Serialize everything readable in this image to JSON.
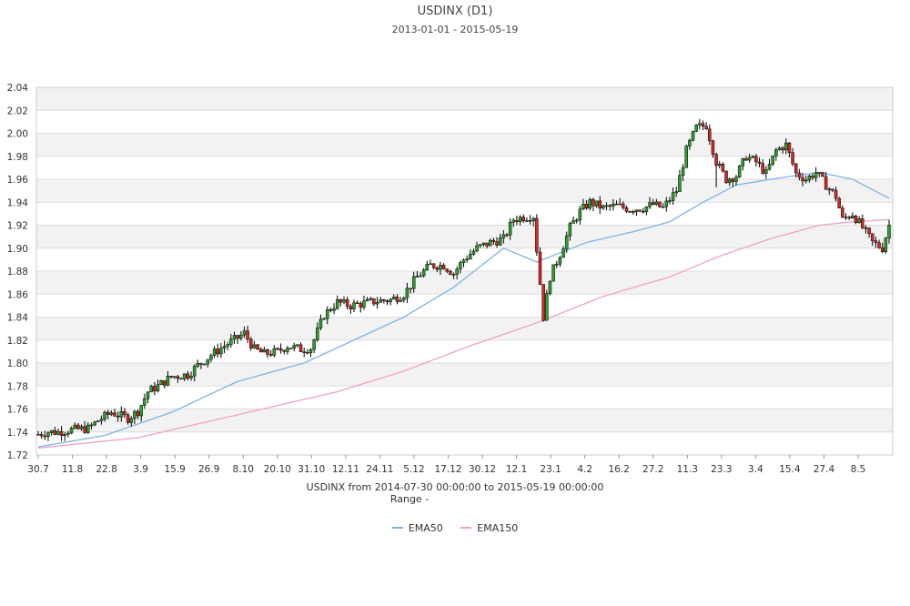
{
  "chart_data": {
    "type": "candlestick",
    "title": "USDINX (D1)",
    "subtitle": "2013-01-01 - 2015-05-19",
    "xlabel": "USDINX from 2014-07-30 00:00:00 to 2015-05-19 00:00:00",
    "range_label": "Range  -",
    "ylim": [
      1.72,
      2.04
    ],
    "yticks": [
      "1.72",
      "1.74",
      "1.76",
      "1.78",
      "1.80",
      "1.82",
      "1.84",
      "1.86",
      "1.88",
      "1.90",
      "1.92",
      "1.94",
      "1.96",
      "1.98",
      "2.00",
      "2.02",
      "2.04"
    ],
    "xticks": [
      "30.7",
      "11.8",
      "22.8",
      "3.9",
      "15.9",
      "26.9",
      "8.10",
      "20.10",
      "31.10",
      "12.11",
      "24.11",
      "5.12",
      "17.12",
      "30.12",
      "12.1",
      "23.1",
      "4.2",
      "16.2",
      "27.2",
      "11.3",
      "23.3",
      "3.4",
      "15.4",
      "27.4",
      "8.5"
    ],
    "grid": "horizontal bands",
    "legend_position": "bottom-center",
    "price_path": [
      [
        0,
        1.738
      ],
      [
        3,
        1.74
      ],
      [
        6,
        1.74
      ],
      [
        10,
        1.742
      ],
      [
        15,
        1.743
      ],
      [
        18,
        1.75
      ],
      [
        22,
        1.757
      ],
      [
        27,
        1.752
      ],
      [
        30,
        1.758
      ],
      [
        33,
        1.775
      ],
      [
        36,
        1.78
      ],
      [
        40,
        1.788
      ],
      [
        45,
        1.79
      ],
      [
        48,
        1.798
      ],
      [
        52,
        1.807
      ],
      [
        56,
        1.815
      ],
      [
        60,
        1.822
      ],
      [
        62,
        1.826
      ],
      [
        65,
        1.812
      ],
      [
        68,
        1.808
      ],
      [
        72,
        1.81
      ],
      [
        75,
        1.815
      ],
      [
        79,
        1.812
      ],
      [
        82,
        1.813
      ],
      [
        86,
        1.842
      ],
      [
        90,
        1.853
      ],
      [
        94,
        1.85
      ],
      [
        98,
        1.852
      ],
      [
        102,
        1.854
      ],
      [
        106,
        1.855
      ],
      [
        110,
        1.86
      ],
      [
        114,
        1.875
      ],
      [
        118,
        1.885
      ],
      [
        122,
        1.885
      ],
      [
        125,
        1.878
      ],
      [
        128,
        1.89
      ],
      [
        132,
        1.9
      ],
      [
        136,
        1.905
      ],
      [
        140,
        1.908
      ],
      [
        143,
        1.925
      ],
      [
        146,
        1.927
      ],
      [
        149,
        1.928
      ],
      [
        152,
        1.84
      ],
      [
        154,
        1.875
      ],
      [
        157,
        1.895
      ],
      [
        160,
        1.918
      ],
      [
        163,
        1.932
      ],
      [
        166,
        1.94
      ],
      [
        170,
        1.935
      ],
      [
        174,
        1.937
      ],
      [
        178,
        1.934
      ],
      [
        182,
        1.935
      ],
      [
        185,
        1.938
      ],
      [
        188,
        1.935
      ],
      [
        192,
        1.95
      ],
      [
        195,
        1.985
      ],
      [
        198,
        2.005
      ],
      [
        201,
        2.007
      ],
      [
        204,
        1.975
      ],
      [
        207,
        1.96
      ],
      [
        210,
        1.963
      ],
      [
        213,
        1.98
      ],
      [
        216,
        1.975
      ],
      [
        219,
        1.965
      ],
      [
        222,
        1.985
      ],
      [
        225,
        1.99
      ],
      [
        228,
        1.965
      ],
      [
        231,
        1.96
      ],
      [
        234,
        1.966
      ],
      [
        237,
        1.955
      ],
      [
        240,
        1.945
      ],
      [
        242,
        1.925
      ],
      [
        245,
        1.93
      ],
      [
        248,
        1.918
      ],
      [
        251,
        1.905
      ],
      [
        254,
        1.9
      ],
      [
        256,
        1.92
      ]
    ],
    "series": [
      {
        "name": "EMA50",
        "color": "#7fb2e5",
        "values": [
          [
            0,
            1.727
          ],
          [
            20,
            1.737
          ],
          [
            40,
            1.757
          ],
          [
            60,
            1.784
          ],
          [
            70,
            1.792
          ],
          [
            80,
            1.8
          ],
          [
            95,
            1.82
          ],
          [
            110,
            1.84
          ],
          [
            125,
            1.866
          ],
          [
            140,
            1.9
          ],
          [
            150,
            1.888
          ],
          [
            165,
            1.905
          ],
          [
            180,
            1.915
          ],
          [
            190,
            1.923
          ],
          [
            200,
            1.94
          ],
          [
            210,
            1.955
          ],
          [
            225,
            1.962
          ],
          [
            235,
            1.966
          ],
          [
            245,
            1.96
          ],
          [
            257,
            1.942
          ]
        ]
      },
      {
        "name": "EMA150",
        "color": "#f0a0c8",
        "values": [
          [
            0,
            1.726
          ],
          [
            30,
            1.735
          ],
          [
            60,
            1.755
          ],
          [
            90,
            1.775
          ],
          [
            110,
            1.793
          ],
          [
            130,
            1.815
          ],
          [
            150,
            1.835
          ],
          [
            170,
            1.858
          ],
          [
            190,
            1.875
          ],
          [
            205,
            1.893
          ],
          [
            220,
            1.908
          ],
          [
            235,
            1.92
          ],
          [
            245,
            1.923
          ],
          [
            257,
            1.925
          ]
        ]
      }
    ],
    "colors": {
      "up": "#2ca02c",
      "down": "#d62728",
      "wick": "#000000"
    }
  }
}
